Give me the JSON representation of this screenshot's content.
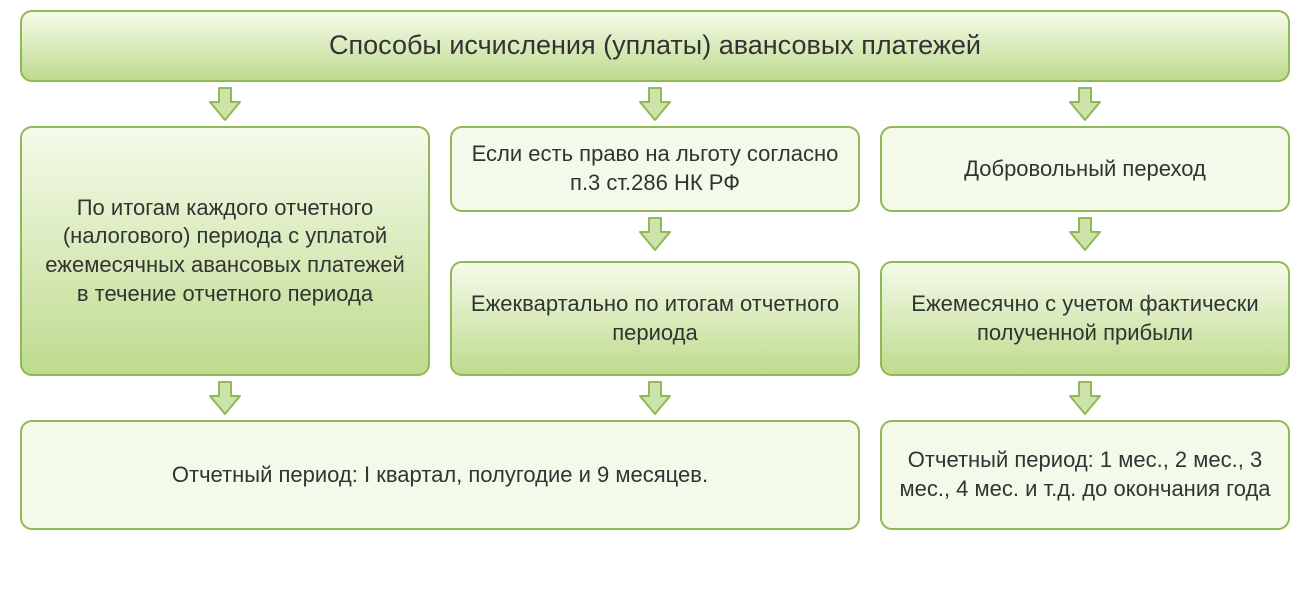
{
  "colors": {
    "border": "#8fb956",
    "gradTop": "#f5fbea",
    "gradBottom": "#bedb8e",
    "flatFill": "#f3faea",
    "arrowFill": "#cee3a9",
    "arrowStroke": "#8fb956",
    "text": "#333333"
  },
  "layout": {
    "titleHeight": 72,
    "arrowRowHeight": 44,
    "midBoxHeight": 80,
    "tallBoxHeight": 250,
    "shortMidHeight": 110,
    "bottomHeight": 110,
    "titleFontSize": 27,
    "bodyFontSize": 22
  },
  "title": "Способы исчисления (уплаты) авансовых платежей",
  "col1": {
    "big": "По итогам каждого отчетного (налогового) периода с уплатой ежемесячных авансовых платежей в течение отчетного периода"
  },
  "col2": {
    "cond": "Если есть право на льготу согласно п.3 ст.286 НК РФ",
    "mid": "Ежеквартально по итогам отчетного периода"
  },
  "col3": {
    "cond": "Добровольный переход",
    "mid": "Ежемесячно с учетом фактически полученной прибыли"
  },
  "bottomLeft": "Отчетный период: I квартал, полугодие и 9 месяцев.",
  "bottomRight": "Отчетный период: 1 мес., 2 мес., 3 мес., 4 мес. и т.д. до окончания года"
}
